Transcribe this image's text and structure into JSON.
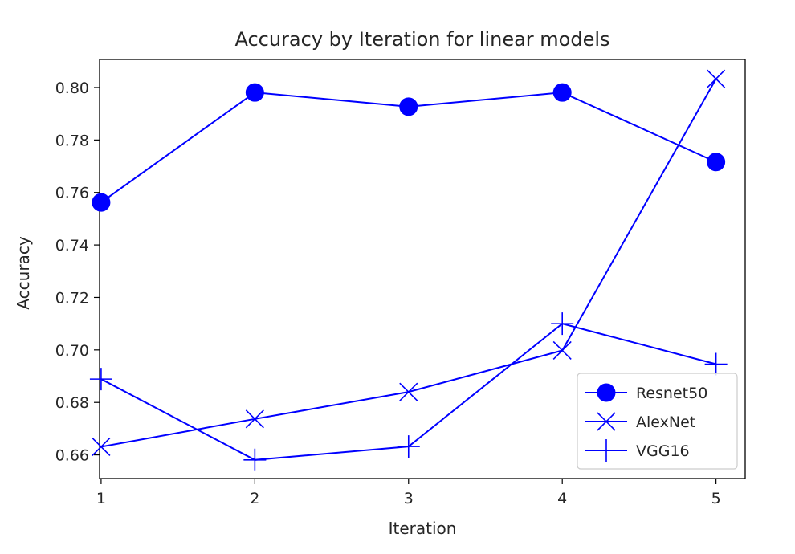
{
  "chart_data": {
    "type": "line",
    "title": "Accuracy by Iteration for linear models",
    "xlabel": "Iteration",
    "ylabel": "Accuracy",
    "x": [
      1,
      2,
      3,
      4,
      5
    ],
    "xlim": [
      0.99,
      5.19
    ],
    "ylim": [
      0.651,
      0.8107
    ],
    "xticks": [
      "1",
      "2",
      "3",
      "4",
      "5"
    ],
    "yticks": [
      "0.66",
      "0.68",
      "0.70",
      "0.72",
      "0.74",
      "0.76",
      "0.78",
      "0.80"
    ],
    "legend_position": "lower-right",
    "grid": false,
    "color": "#0000ff",
    "series": [
      {
        "name": "Resnet50",
        "marker": "circle",
        "values": [
          0.7562,
          0.7981,
          0.7927,
          0.7981,
          0.7716
        ]
      },
      {
        "name": "AlexNet",
        "marker": "x",
        "values": [
          0.6631,
          0.6737,
          0.684,
          0.6998,
          0.8033
        ]
      },
      {
        "name": "VGG16",
        "marker": "plus",
        "values": [
          0.6889,
          0.6581,
          0.6632,
          0.71,
          0.6946
        ]
      }
    ]
  }
}
